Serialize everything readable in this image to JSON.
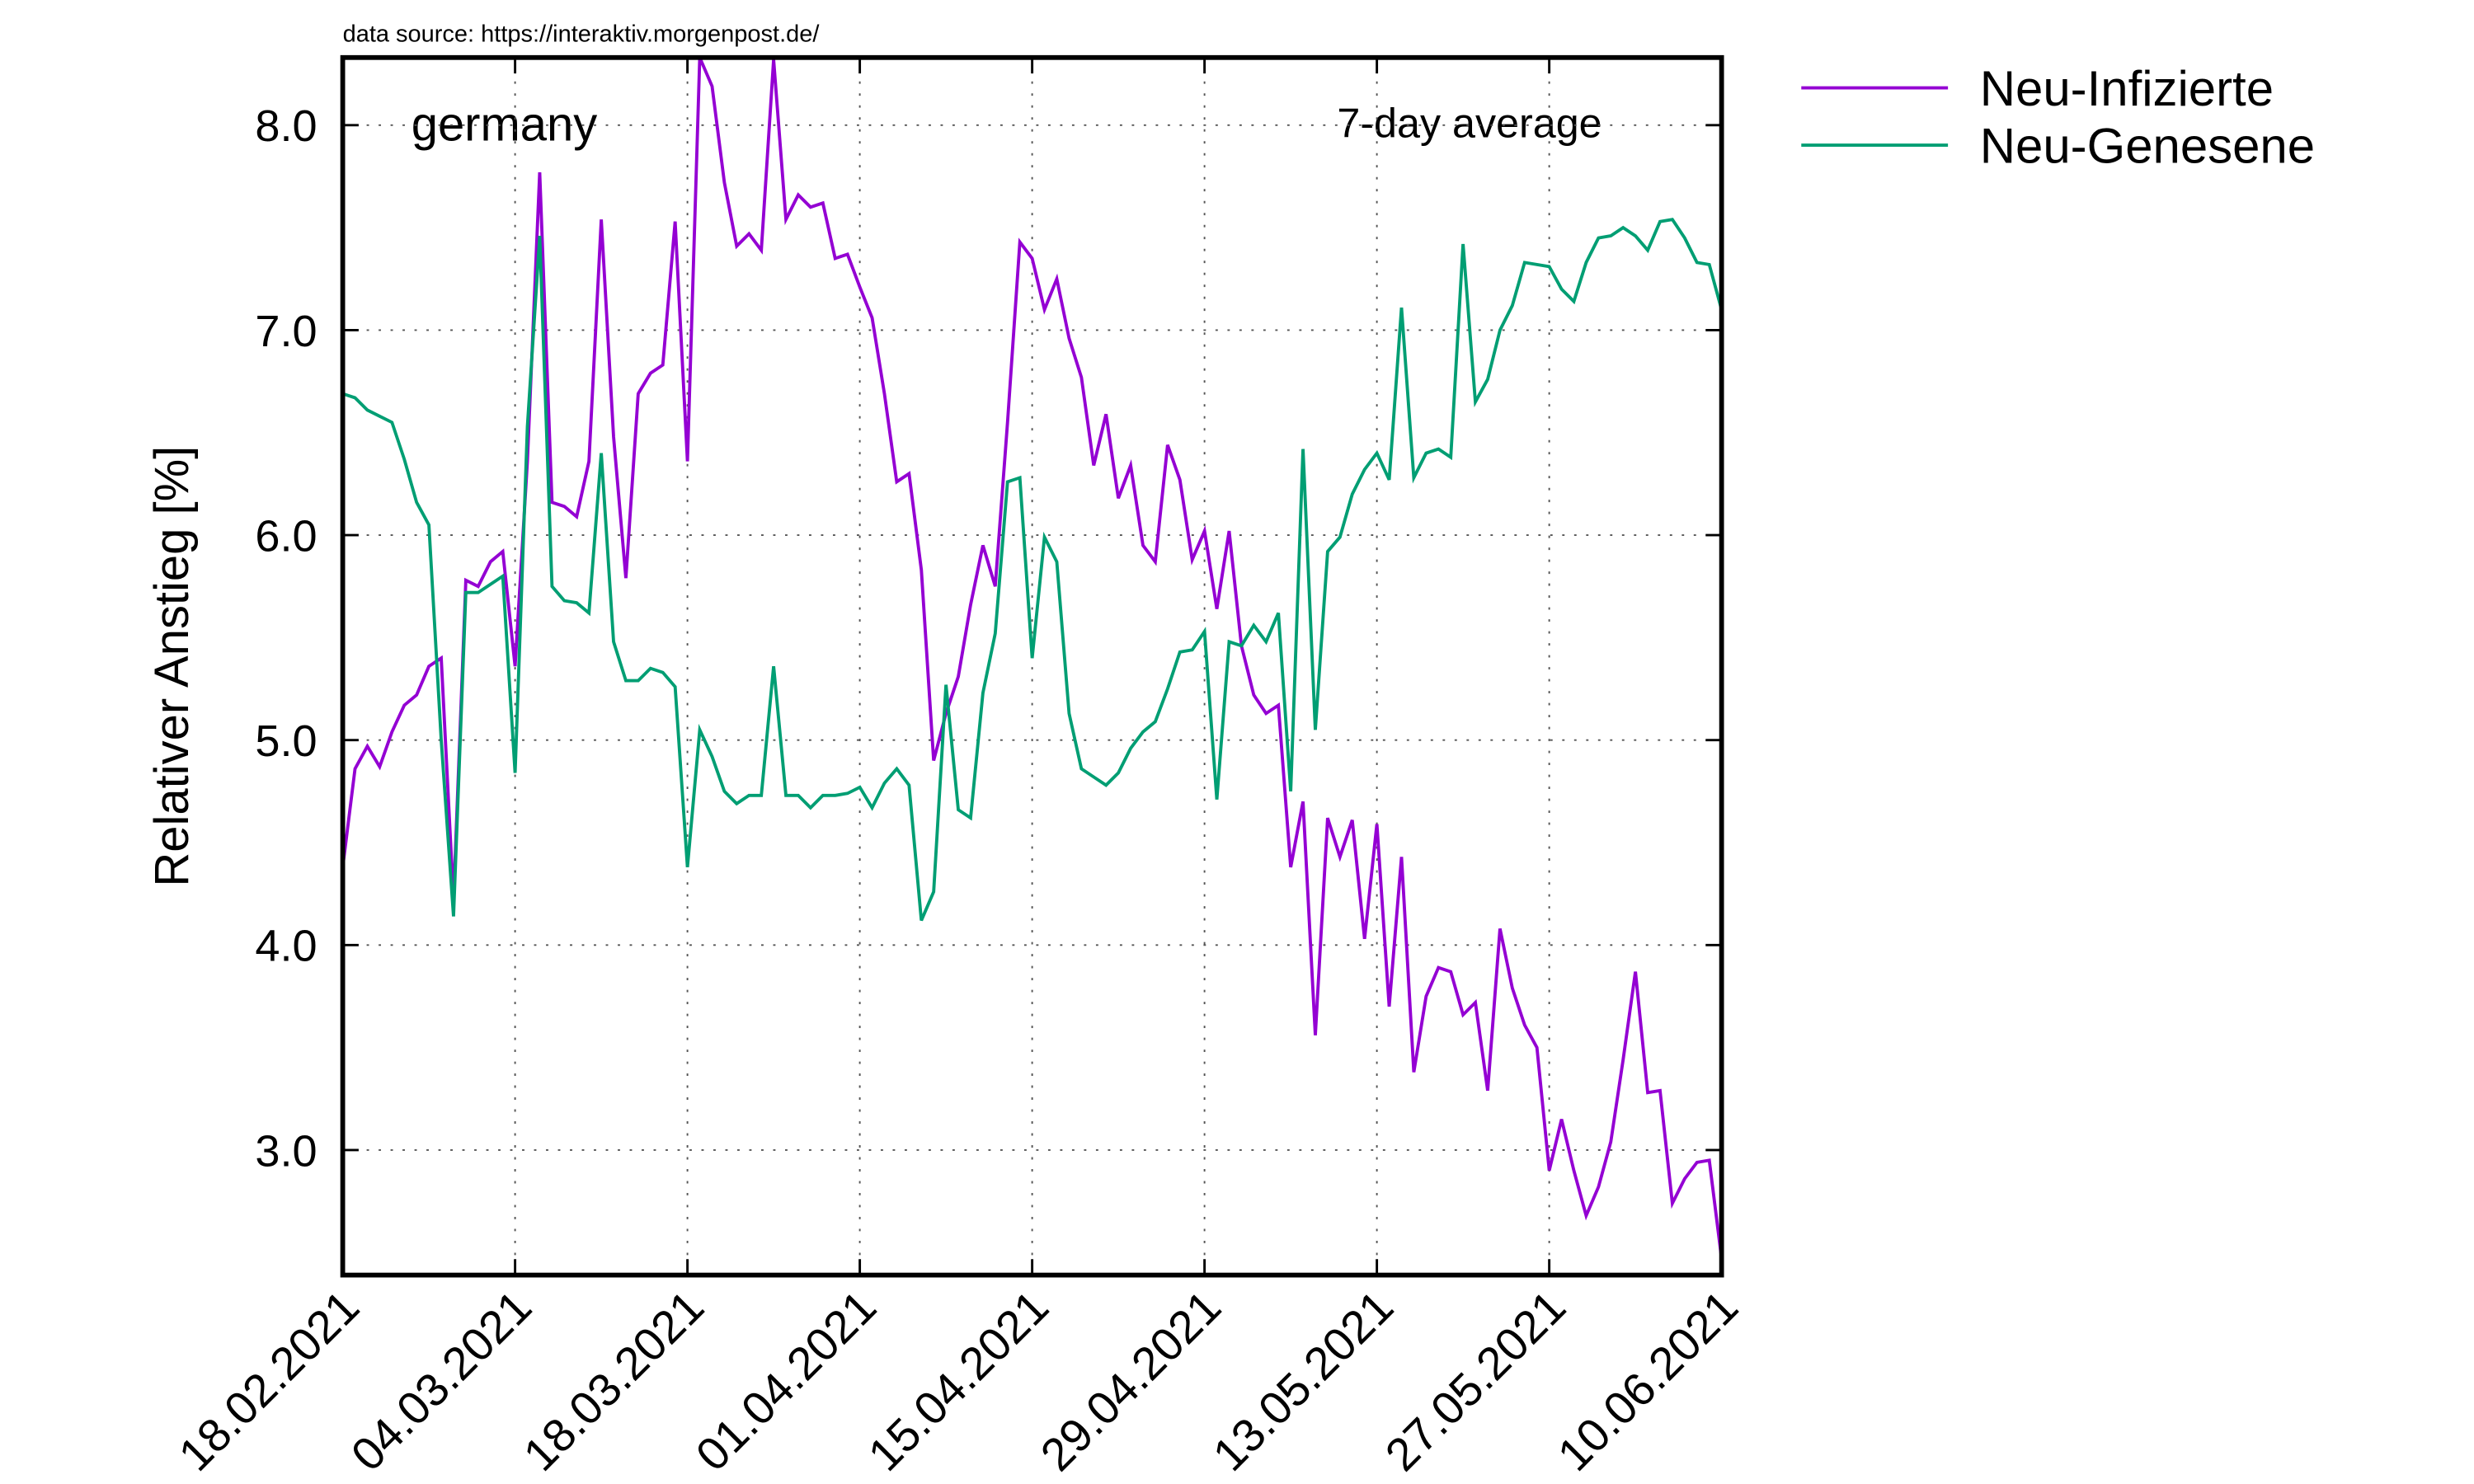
{
  "chart_data": {
    "type": "line",
    "source_note": "data source: https://interaktiv.morgenpost.de/",
    "title": "germany",
    "annotation": "7-day average",
    "y_label": "Relativer Anstieg [%]",
    "grid": true,
    "legend_position": "outside-right",
    "x": [
      "18.02.2021",
      "19.02.2021",
      "20.02.2021",
      "21.02.2021",
      "22.02.2021",
      "23.02.2021",
      "24.02.2021",
      "25.02.2021",
      "26.02.2021",
      "27.02.2021",
      "28.02.2021",
      "01.03.2021",
      "02.03.2021",
      "03.03.2021",
      "04.03.2021",
      "05.03.2021",
      "06.03.2021",
      "07.03.2021",
      "08.03.2021",
      "09.03.2021",
      "10.03.2021",
      "11.03.2021",
      "12.03.2021",
      "13.03.2021",
      "14.03.2021",
      "15.03.2021",
      "16.03.2021",
      "17.03.2021",
      "18.03.2021",
      "19.03.2021",
      "20.03.2021",
      "21.03.2021",
      "22.03.2021",
      "23.03.2021",
      "24.03.2021",
      "25.03.2021",
      "26.03.2021",
      "27.03.2021",
      "28.03.2021",
      "29.03.2021",
      "30.03.2021",
      "31.03.2021",
      "01.04.2021",
      "02.04.2021",
      "03.04.2021",
      "04.04.2021",
      "05.04.2021",
      "06.04.2021",
      "07.04.2021",
      "08.04.2021",
      "09.04.2021",
      "10.04.2021",
      "11.04.2021",
      "12.04.2021",
      "13.04.2021",
      "14.04.2021",
      "15.04.2021",
      "16.04.2021",
      "17.04.2021",
      "18.04.2021",
      "19.04.2021",
      "20.04.2021",
      "21.04.2021",
      "22.04.2021",
      "23.04.2021",
      "24.04.2021",
      "25.04.2021",
      "26.04.2021",
      "27.04.2021",
      "28.04.2021",
      "29.04.2021",
      "30.04.2021",
      "01.05.2021",
      "02.05.2021",
      "03.05.2021",
      "04.05.2021",
      "05.05.2021",
      "06.05.2021",
      "07.05.2021",
      "08.05.2021",
      "09.05.2021",
      "10.05.2021",
      "11.05.2021",
      "12.05.2021",
      "13.05.2021",
      "14.05.2021",
      "15.05.2021",
      "16.05.2021",
      "17.05.2021",
      "18.05.2021",
      "19.05.2021",
      "20.05.2021",
      "21.05.2021",
      "22.05.2021",
      "23.05.2021",
      "24.05.2021",
      "25.05.2021",
      "26.05.2021",
      "27.05.2021",
      "28.05.2021",
      "29.05.2021",
      "30.05.2021",
      "31.05.2021",
      "01.06.2021",
      "02.06.2021",
      "03.06.2021",
      "04.06.2021",
      "05.06.2021",
      "06.06.2021",
      "07.06.2021",
      "08.06.2021",
      "09.06.2021",
      "10.06.2021"
    ],
    "xlim": [
      "18.02.2021",
      "10.06.2021"
    ],
    "xticks": [
      "18.02.2021",
      "04.03.2021",
      "18.03.2021",
      "01.04.2021",
      "15.04.2021",
      "29.04.2021",
      "13.05.2021",
      "27.05.2021",
      "10.06.2021"
    ],
    "ylim": [
      2.39,
      8.33
    ],
    "yticks": [
      {
        "value": 3,
        "label": "3.0"
      },
      {
        "value": 4,
        "label": "4.0"
      },
      {
        "value": 5,
        "label": "5.0"
      },
      {
        "value": 6,
        "label": "6.0"
      },
      {
        "value": 7,
        "label": "7.0"
      },
      {
        "value": 8,
        "label": "8.0"
      }
    ],
    "series": [
      {
        "name": "Neu-Infizierte",
        "color": "#9400d3",
        "values": [
          4.38,
          4.86,
          4.97,
          4.87,
          5.04,
          5.17,
          5.22,
          5.36,
          5.4,
          4.22,
          5.78,
          5.75,
          5.87,
          5.92,
          5.36,
          6.36,
          7.77,
          6.16,
          6.14,
          6.09,
          6.36,
          7.54,
          6.48,
          5.79,
          6.69,
          6.79,
          6.83,
          7.53,
          6.36,
          8.33,
          8.19,
          7.72,
          7.41,
          7.47,
          7.39,
          8.32,
          7.54,
          7.66,
          7.6,
          7.62,
          7.35,
          7.37,
          7.21,
          7.06,
          6.69,
          6.26,
          6.3,
          5.83,
          4.9,
          5.13,
          5.31,
          5.66,
          5.95,
          5.75,
          6.55,
          7.43,
          7.35,
          7.1,
          7.25,
          6.96,
          6.77,
          6.34,
          6.59,
          6.18,
          6.34,
          5.95,
          5.87,
          6.44,
          6.27,
          5.88,
          6.02,
          5.64,
          6.02,
          5.46,
          5.22,
          5.13,
          5.17,
          4.38,
          4.7,
          3.56,
          4.62,
          4.43,
          4.61,
          4.03,
          4.59,
          3.7,
          4.43,
          3.38,
          3.75,
          3.89,
          3.87,
          3.66,
          3.72,
          3.29,
          4.08,
          3.79,
          3.61,
          3.5,
          2.9,
          3.15,
          2.9,
          2.68,
          2.82,
          3.04,
          3.44,
          3.87,
          3.28,
          3.29,
          2.74,
          2.86,
          2.94,
          2.95,
          2.47
        ]
      },
      {
        "name": "Neu-Genesene",
        "color": "#009e73",
        "values": [
          6.69,
          6.67,
          6.61,
          6.58,
          6.55,
          6.37,
          6.16,
          6.05,
          5.0,
          4.14,
          5.72,
          5.72,
          5.76,
          5.8,
          4.84,
          6.53,
          7.46,
          5.75,
          5.68,
          5.67,
          5.62,
          6.4,
          5.48,
          5.29,
          5.29,
          5.35,
          5.33,
          5.26,
          4.38,
          5.05,
          4.92,
          4.75,
          4.69,
          4.73,
          4.73,
          5.36,
          4.73,
          4.73,
          4.67,
          4.73,
          4.73,
          4.74,
          4.77,
          4.67,
          4.79,
          4.86,
          4.78,
          4.12,
          4.26,
          5.27,
          4.66,
          4.62,
          5.23,
          5.52,
          6.26,
          6.28,
          5.4,
          5.99,
          5.87,
          5.13,
          4.86,
          4.82,
          4.78,
          4.84,
          4.96,
          5.04,
          5.09,
          5.25,
          5.43,
          5.44,
          5.53,
          4.71,
          5.48,
          5.46,
          5.56,
          5.48,
          5.62,
          4.75,
          6.42,
          5.05,
          5.92,
          5.99,
          6.2,
          6.32,
          6.4,
          6.27,
          7.11,
          6.28,
          6.4,
          6.42,
          6.38,
          7.42,
          6.65,
          6.76,
          7.0,
          7.12,
          7.33,
          7.32,
          7.31,
          7.2,
          7.14,
          7.33,
          7.45,
          7.46,
          7.5,
          7.46,
          7.39,
          7.53,
          7.54,
          7.45,
          7.33,
          7.32,
          7.1
        ]
      }
    ]
  }
}
